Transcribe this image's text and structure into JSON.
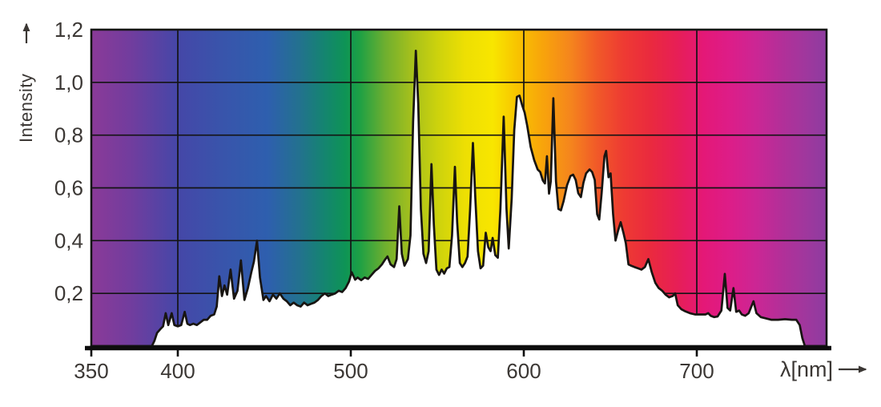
{
  "figure": {
    "title": "",
    "y_axis": {
      "label": "Intensity",
      "tick_labels": [
        "1,2",
        "1,0",
        "0,8",
        "0,6",
        "0,4",
        "0,2"
      ],
      "tick_values": [
        1.2,
        1.0,
        0.8,
        0.6,
        0.4,
        0.2
      ]
    },
    "x_axis": {
      "label": "λ[nm]",
      "tick_labels": [
        "350",
        "400",
        "500",
        "600",
        "700"
      ],
      "tick_values": [
        350,
        400,
        500,
        600,
        700
      ]
    }
  },
  "colors": {
    "ink": "#141414",
    "text": "#3b3734",
    "area_under_curve": "#ffffff",
    "page_background": "#ffffff"
  },
  "chart_data": {
    "type": "area",
    "title": "",
    "xlabel": "λ[nm]",
    "ylabel": "Intensity",
    "xlim": [
      350,
      775
    ],
    "ylim": [
      0,
      1.2
    ],
    "grid": {
      "x_lines": [
        400,
        500,
        600,
        700
      ],
      "y_lines": [
        0.2,
        0.4,
        0.6,
        0.8,
        1.0
      ]
    },
    "legend": "none",
    "description": "Spectral intensity distribution over wavelength; rainbow spectrum fills area above curve, white below",
    "spectrum_gradient": [
      {
        "nm": 350,
        "color": "#8B3A98"
      },
      {
        "nm": 373,
        "color": "#713D9E"
      },
      {
        "nm": 400,
        "color": "#4547A8"
      },
      {
        "nm": 425,
        "color": "#3954AB"
      },
      {
        "nm": 452,
        "color": "#2E5FAE"
      },
      {
        "nm": 470,
        "color": "#23718F"
      },
      {
        "nm": 485,
        "color": "#14856F"
      },
      {
        "nm": 497,
        "color": "#0E9455"
      },
      {
        "nm": 505,
        "color": "#1DA045"
      },
      {
        "nm": 520,
        "color": "#6FAF2F"
      },
      {
        "nm": 535,
        "color": "#A5C01C"
      },
      {
        "nm": 550,
        "color": "#CCD20D"
      },
      {
        "nm": 566,
        "color": "#EDDF03"
      },
      {
        "nm": 582,
        "color": "#F8E600"
      },
      {
        "nm": 596,
        "color": "#F8C400"
      },
      {
        "nm": 611,
        "color": "#F8A40B"
      },
      {
        "nm": 627,
        "color": "#F5851D"
      },
      {
        "nm": 642,
        "color": "#F15A28"
      },
      {
        "nm": 658,
        "color": "#EE3A33"
      },
      {
        "nm": 673,
        "color": "#EA2A3E"
      },
      {
        "nm": 688,
        "color": "#E71F55"
      },
      {
        "nm": 704,
        "color": "#E41877"
      },
      {
        "nm": 719,
        "color": "#DD1D88"
      },
      {
        "nm": 734,
        "color": "#CC2694"
      },
      {
        "nm": 750,
        "color": "#B13099"
      },
      {
        "nm": 762,
        "color": "#A1379D"
      },
      {
        "nm": 775,
        "color": "#8E3CA0"
      }
    ],
    "series": [
      {
        "name": "spectral-intensity",
        "points": [
          [
            350,
            0
          ],
          [
            385,
            0
          ],
          [
            386.5,
            0.02
          ],
          [
            388,
            0.05
          ],
          [
            390,
            0.065
          ],
          [
            391.5,
            0.075
          ],
          [
            393,
            0.125
          ],
          [
            394.5,
            0.08
          ],
          [
            396.5,
            0.125
          ],
          [
            398,
            0.08
          ],
          [
            400,
            0.075
          ],
          [
            402,
            0.08
          ],
          [
            404,
            0.13
          ],
          [
            405.5,
            0.085
          ],
          [
            407,
            0.08
          ],
          [
            409,
            0.085
          ],
          [
            411,
            0.08
          ],
          [
            413,
            0.09
          ],
          [
            415,
            0.1
          ],
          [
            417,
            0.1
          ],
          [
            419,
            0.115
          ],
          [
            421,
            0.12
          ],
          [
            422.5,
            0.15
          ],
          [
            424,
            0.265
          ],
          [
            425.5,
            0.19
          ],
          [
            427,
            0.23
          ],
          [
            428.5,
            0.195
          ],
          [
            430.5,
            0.29
          ],
          [
            432.5,
            0.18
          ],
          [
            434.5,
            0.21
          ],
          [
            436.5,
            0.325
          ],
          [
            438.5,
            0.175
          ],
          [
            440.5,
            0.22
          ],
          [
            442.5,
            0.28
          ],
          [
            444,
            0.32
          ],
          [
            445.8,
            0.4
          ],
          [
            447.5,
            0.26
          ],
          [
            449.5,
            0.175
          ],
          [
            451,
            0.19
          ],
          [
            453,
            0.17
          ],
          [
            455,
            0.195
          ],
          [
            457,
            0.18
          ],
          [
            459,
            0.2
          ],
          [
            461,
            0.18
          ],
          [
            463,
            0.17
          ],
          [
            465,
            0.155
          ],
          [
            467,
            0.165
          ],
          [
            469,
            0.155
          ],
          [
            471,
            0.15
          ],
          [
            473,
            0.165
          ],
          [
            475,
            0.155
          ],
          [
            477,
            0.16
          ],
          [
            479,
            0.165
          ],
          [
            481,
            0.175
          ],
          [
            483,
            0.19
          ],
          [
            485,
            0.2
          ],
          [
            487,
            0.19
          ],
          [
            489,
            0.195
          ],
          [
            491,
            0.2
          ],
          [
            493,
            0.21
          ],
          [
            495,
            0.205
          ],
          [
            497,
            0.22
          ],
          [
            499,
            0.245
          ],
          [
            500.5,
            0.28
          ],
          [
            502.5,
            0.252
          ],
          [
            504,
            0.26
          ],
          [
            506,
            0.25
          ],
          [
            508,
            0.26
          ],
          [
            510,
            0.255
          ],
          [
            512,
            0.27
          ],
          [
            514,
            0.285
          ],
          [
            516,
            0.295
          ],
          [
            518,
            0.31
          ],
          [
            520,
            0.33
          ],
          [
            521.2,
            0.34
          ],
          [
            523,
            0.31
          ],
          [
            525,
            0.3
          ],
          [
            526.5,
            0.33
          ],
          [
            528,
            0.53
          ],
          [
            529.5,
            0.35
          ],
          [
            531,
            0.305
          ],
          [
            533,
            0.33
          ],
          [
            534.5,
            0.42
          ],
          [
            536,
            0.85
          ],
          [
            537.6,
            1.12
          ],
          [
            539,
            0.92
          ],
          [
            540.5,
            0.52
          ],
          [
            542,
            0.35
          ],
          [
            543.5,
            0.315
          ],
          [
            545,
            0.36
          ],
          [
            546.6,
            0.69
          ],
          [
            548,
            0.46
          ],
          [
            549.5,
            0.29
          ],
          [
            551,
            0.27
          ],
          [
            552.5,
            0.29
          ],
          [
            554,
            0.275
          ],
          [
            555.5,
            0.295
          ],
          [
            557,
            0.3
          ],
          [
            558.5,
            0.42
          ],
          [
            560.2,
            0.68
          ],
          [
            561.5,
            0.47
          ],
          [
            563,
            0.315
          ],
          [
            564.5,
            0.3
          ],
          [
            566,
            0.315
          ],
          [
            567.5,
            0.34
          ],
          [
            569,
            0.52
          ],
          [
            570.6,
            0.77
          ],
          [
            572,
            0.56
          ],
          [
            573.5,
            0.36
          ],
          [
            575,
            0.295
          ],
          [
            576.5,
            0.305
          ],
          [
            578,
            0.43
          ],
          [
            579.5,
            0.375
          ],
          [
            580.8,
            0.36
          ],
          [
            582,
            0.41
          ],
          [
            583.5,
            0.345
          ],
          [
            585,
            0.335
          ],
          [
            586.5,
            0.52
          ],
          [
            588.4,
            0.87
          ],
          [
            590,
            0.52
          ],
          [
            591.3,
            0.37
          ],
          [
            593,
            0.56
          ],
          [
            594.5,
            0.82
          ],
          [
            596,
            0.945
          ],
          [
            597.5,
            0.95
          ],
          [
            599,
            0.915
          ],
          [
            600.5,
            0.885
          ],
          [
            602,
            0.835
          ],
          [
            604,
            0.755
          ],
          [
            606,
            0.705
          ],
          [
            608,
            0.67
          ],
          [
            609.5,
            0.66
          ],
          [
            611,
            0.628
          ],
          [
            612.2,
            0.617
          ],
          [
            613.4,
            0.72
          ],
          [
            614.6,
            0.578
          ],
          [
            615.6,
            0.625
          ],
          [
            617.1,
            0.94
          ],
          [
            618.6,
            0.625
          ],
          [
            620,
            0.52
          ],
          [
            621.5,
            0.515
          ],
          [
            623,
            0.55
          ],
          [
            625,
            0.61
          ],
          [
            627,
            0.645
          ],
          [
            628.5,
            0.65
          ],
          [
            630,
            0.63
          ],
          [
            631.5,
            0.58
          ],
          [
            633,
            0.565
          ],
          [
            634.5,
            0.62
          ],
          [
            636,
            0.655
          ],
          [
            638,
            0.67
          ],
          [
            639.5,
            0.66
          ],
          [
            641,
            0.63
          ],
          [
            642.4,
            0.5
          ],
          [
            643.6,
            0.48
          ],
          [
            645,
            0.58
          ],
          [
            646.6,
            0.72
          ],
          [
            647.6,
            0.74
          ],
          [
            649,
            0.64
          ],
          [
            650.2,
            0.655
          ],
          [
            651.6,
            0.5
          ],
          [
            653,
            0.4
          ],
          [
            654.6,
            0.44
          ],
          [
            656,
            0.47
          ],
          [
            657.6,
            0.43
          ],
          [
            659,
            0.39
          ],
          [
            660.5,
            0.31
          ],
          [
            662,
            0.305
          ],
          [
            664,
            0.3
          ],
          [
            666,
            0.295
          ],
          [
            668,
            0.29
          ],
          [
            670,
            0.3
          ],
          [
            672,
            0.33
          ],
          [
            674,
            0.28
          ],
          [
            676,
            0.24
          ],
          [
            678,
            0.22
          ],
          [
            680,
            0.21
          ],
          [
            682,
            0.195
          ],
          [
            684,
            0.185
          ],
          [
            686,
            0.19
          ],
          [
            687.5,
            0.2
          ],
          [
            689,
            0.155
          ],
          [
            691,
            0.14
          ],
          [
            693,
            0.133
          ],
          [
            696,
            0.125
          ],
          [
            699,
            0.12
          ],
          [
            702,
            0.12
          ],
          [
            705,
            0.12
          ],
          [
            706.6,
            0.125
          ],
          [
            708,
            0.115
          ],
          [
            710,
            0.11
          ],
          [
            712,
            0.112
          ],
          [
            714.2,
            0.135
          ],
          [
            716.2,
            0.274
          ],
          [
            717.8,
            0.145
          ],
          [
            719.3,
            0.135
          ],
          [
            721.2,
            0.22
          ],
          [
            722.8,
            0.13
          ],
          [
            724.5,
            0.135
          ],
          [
            726,
            0.12
          ],
          [
            728,
            0.115
          ],
          [
            730,
            0.125
          ],
          [
            732.8,
            0.17
          ],
          [
            734.5,
            0.125
          ],
          [
            737,
            0.11
          ],
          [
            740,
            0.105
          ],
          [
            743,
            0.1
          ],
          [
            747,
            0.1
          ],
          [
            751,
            0.102
          ],
          [
            755,
            0.1
          ],
          [
            757.5,
            0.1
          ],
          [
            759.5,
            0.08
          ],
          [
            761,
            0.03
          ],
          [
            762.5,
            0
          ],
          [
            775,
            0
          ]
        ]
      }
    ]
  }
}
